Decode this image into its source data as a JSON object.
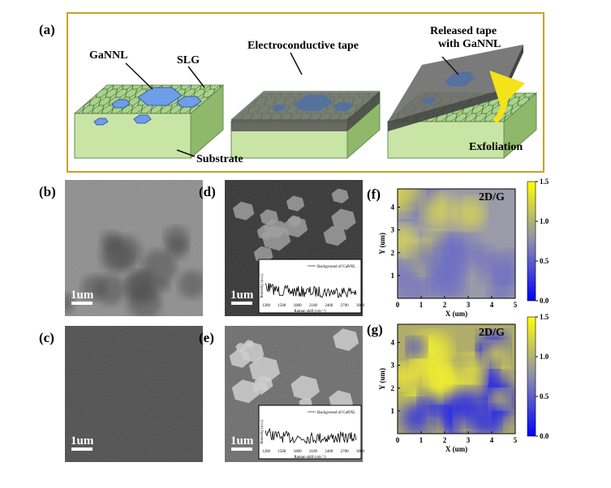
{
  "panel_a": {
    "label": "(a)",
    "gannl": "GaNNL",
    "slg": "SLG",
    "tape": "Electroconductive tape",
    "released": [
      "Released tape",
      "with GaNNL"
    ],
    "substrate": "Substrate",
    "exfoliation": "Exfoliation"
  },
  "images": [
    {
      "label": "(b)",
      "scale_bar": "1um"
    },
    {
      "label": "(c)",
      "scale_bar": "1um"
    },
    {
      "label": "(d)",
      "scale_bar": "1um",
      "inset": {
        "legend": "Background of GaNNL",
        "x_label": "Raman shift (cm⁻¹)",
        "y_label": "Intensity (a.u.)",
        "xticks": [
          "1200",
          "1500",
          "1800",
          "2100",
          "2400",
          "2700",
          "3000"
        ]
      }
    },
    {
      "label": "(e)",
      "scale_bar": "1um",
      "inset": {
        "legend": "Background of GaNNL",
        "x_label": "Raman shift (cm⁻¹)",
        "y_label": "Intensity (a.u.)",
        "xticks": [
          "1200",
          "1500",
          "1800",
          "2100",
          "2400",
          "2700",
          "3000"
        ]
      }
    }
  ],
  "maps": [
    {
      "label": "(f)",
      "title": "2D/G",
      "x_label": "X (um)",
      "y_label": "Y (um)",
      "xticks": [
        "0",
        "1",
        "2",
        "3",
        "4",
        "5"
      ],
      "yticks": [
        "1",
        "2",
        "3",
        "4"
      ],
      "colorbar_ticks": [
        "0.0",
        "0.5",
        "1.0",
        "1.5"
      ]
    },
    {
      "label": "(g)",
      "title": "2D/G",
      "x_label": "X (um)",
      "y_label": "Y (um)",
      "xticks": [
        "0",
        "1",
        "2",
        "3",
        "4",
        "5"
      ],
      "yticks": [
        "1",
        "2",
        "3",
        "4"
      ],
      "colorbar_ticks": [
        "0.0",
        "0.5",
        "1.0",
        "1.5"
      ]
    }
  ]
}
